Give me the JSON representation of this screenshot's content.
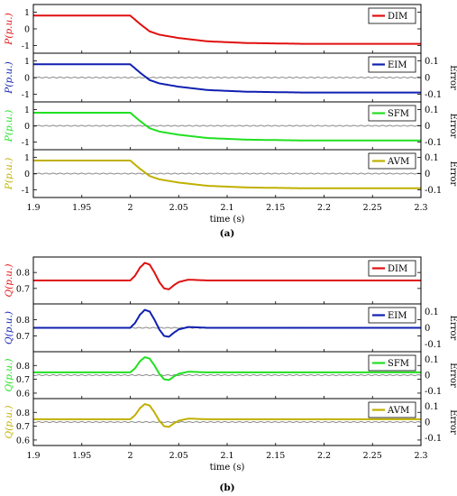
{
  "chart_data": [
    {
      "type": "line",
      "caption": "(a)",
      "xlabel": "time (s)",
      "xlim": [
        1.9,
        2.3
      ],
      "xticks": [
        1.9,
        1.95,
        2,
        2.05,
        2.1,
        2.15,
        2.2,
        2.25,
        2.3
      ],
      "xtick_labels": [
        "1.9",
        "1.95",
        "2",
        "2.05",
        "2.1",
        "2.15",
        "2.2",
        "2.25",
        "2.3"
      ],
      "error_label": "Error",
      "error_ticks": [
        "0.1",
        "0",
        "-0.1"
      ],
      "panels": [
        {
          "name": "DIM",
          "ylabel": "P(p.u.)",
          "color": "#e01010",
          "has_error": false,
          "ylim": [
            -1.3,
            1.3
          ],
          "yticks": [
            1,
            0,
            -1
          ],
          "ytick_labels": [
            "1",
            "0",
            "-1"
          ],
          "series": {
            "x": [
              1.9,
              2.0,
              2.01,
              2.02,
              2.03,
              2.05,
              2.08,
              2.12,
              2.18,
              2.3
            ],
            "y": [
              0.8,
              0.8,
              0.3,
              -0.15,
              -0.35,
              -0.55,
              -0.75,
              -0.85,
              -0.9,
              -0.9
            ]
          }
        },
        {
          "name": "EIM",
          "ylabel": "P(p.u.)",
          "color": "#1020b0",
          "has_error": true,
          "ylim": [
            -1.3,
            1.3
          ],
          "yticks": [
            1,
            0,
            -1
          ],
          "ytick_labels": [
            "1",
            "0",
            "-1"
          ],
          "series": {
            "x": [
              1.9,
              2.0,
              2.01,
              2.02,
              2.03,
              2.05,
              2.08,
              2.12,
              2.18,
              2.3
            ],
            "y": [
              0.8,
              0.8,
              0.3,
              -0.15,
              -0.35,
              -0.55,
              -0.75,
              -0.85,
              -0.9,
              -0.9
            ]
          }
        },
        {
          "name": "SFM",
          "ylabel": "P(p.u.)",
          "color": "#20e020",
          "has_error": true,
          "ylim": [
            -1.3,
            1.3
          ],
          "yticks": [
            1,
            0,
            -1
          ],
          "ytick_labels": [
            "1",
            "0",
            "-1"
          ],
          "series": {
            "x": [
              1.9,
              2.0,
              2.01,
              2.02,
              2.03,
              2.05,
              2.08,
              2.12,
              2.18,
              2.3
            ],
            "y": [
              0.8,
              0.8,
              0.3,
              -0.15,
              -0.35,
              -0.55,
              -0.75,
              -0.85,
              -0.9,
              -0.9
            ]
          }
        },
        {
          "name": "AVM",
          "ylabel": "P(p.u.)",
          "color": "#c0b000",
          "has_error": true,
          "ylim": [
            -1.3,
            1.3
          ],
          "yticks": [
            1,
            0,
            -1
          ],
          "ytick_labels": [
            "1",
            "0",
            "-1"
          ],
          "series": {
            "x": [
              1.9,
              2.0,
              2.01,
              2.02,
              2.03,
              2.05,
              2.08,
              2.12,
              2.18,
              2.3
            ],
            "y": [
              0.8,
              0.8,
              0.3,
              -0.15,
              -0.35,
              -0.55,
              -0.75,
              -0.85,
              -0.9,
              -0.9
            ]
          }
        }
      ]
    },
    {
      "type": "line",
      "caption": "(b)",
      "xlabel": "time (s)",
      "xlim": [
        1.9,
        2.3
      ],
      "xticks": [
        1.9,
        1.95,
        2,
        2.05,
        2.1,
        2.15,
        2.2,
        2.25,
        2.3
      ],
      "xtick_labels": [
        "1.9",
        "1.95",
        "2",
        "2.05",
        "2.1",
        "2.15",
        "2.2",
        "2.25",
        "2.3"
      ],
      "error_label": "Error",
      "error_ticks": [
        "0.1",
        "0",
        "-0.1"
      ],
      "panels": [
        {
          "name": "DIM",
          "ylabel": "Q(p.u.)",
          "color": "#e01010",
          "has_error": false,
          "ylim": [
            0.62,
            0.88
          ],
          "yticks": [
            0.8,
            0.7
          ],
          "ytick_labels": [
            "0.8",
            "0.7"
          ],
          "series": {
            "x": [
              1.9,
              2.0,
              2.005,
              2.01,
              2.015,
              2.02,
              2.025,
              2.03,
              2.035,
              2.04,
              2.045,
              2.05,
              2.06,
              2.08,
              2.3
            ],
            "y": [
              0.75,
              0.75,
              0.78,
              0.83,
              0.86,
              0.85,
              0.8,
              0.74,
              0.7,
              0.695,
              0.72,
              0.74,
              0.755,
              0.75,
              0.75
            ]
          }
        },
        {
          "name": "EIM",
          "ylabel": "Q(p.u.)",
          "color": "#1020b0",
          "has_error": true,
          "ylim": [
            0.62,
            0.88
          ],
          "yticks": [
            0.8,
            0.7
          ],
          "ytick_labels": [
            "0.8",
            "0.7"
          ],
          "series": {
            "x": [
              1.9,
              2.0,
              2.005,
              2.01,
              2.015,
              2.02,
              2.025,
              2.03,
              2.035,
              2.04,
              2.045,
              2.05,
              2.06,
              2.08,
              2.3
            ],
            "y": [
              0.75,
              0.75,
              0.78,
              0.83,
              0.86,
              0.85,
              0.8,
              0.74,
              0.7,
              0.695,
              0.72,
              0.74,
              0.755,
              0.75,
              0.75
            ]
          }
        },
        {
          "name": "SFM",
          "ylabel": "Q(p.u.)",
          "color": "#20e020",
          "has_error": true,
          "ylim": [
            0.58,
            0.88
          ],
          "yticks": [
            0.8,
            0.7,
            0.6
          ],
          "ytick_labels": [
            "0.8",
            "0.7",
            "0.6"
          ],
          "series": {
            "x": [
              1.9,
              2.0,
              2.005,
              2.01,
              2.015,
              2.02,
              2.025,
              2.03,
              2.035,
              2.04,
              2.045,
              2.05,
              2.06,
              2.08,
              2.3
            ],
            "y": [
              0.75,
              0.75,
              0.78,
              0.83,
              0.86,
              0.85,
              0.8,
              0.74,
              0.7,
              0.695,
              0.72,
              0.74,
              0.755,
              0.75,
              0.75
            ]
          }
        },
        {
          "name": "AVM",
          "ylabel": "Q(p.u.)",
          "color": "#c0b000",
          "has_error": true,
          "ylim": [
            0.58,
            0.88
          ],
          "yticks": [
            0.8,
            0.7,
            0.6
          ],
          "ytick_labels": [
            "0.8",
            "0.7",
            "0.6"
          ],
          "series": {
            "x": [
              1.9,
              2.0,
              2.005,
              2.01,
              2.015,
              2.02,
              2.025,
              2.03,
              2.035,
              2.04,
              2.045,
              2.05,
              2.06,
              2.08,
              2.3
            ],
            "y": [
              0.75,
              0.75,
              0.78,
              0.83,
              0.86,
              0.85,
              0.8,
              0.74,
              0.7,
              0.695,
              0.72,
              0.74,
              0.755,
              0.75,
              0.75
            ]
          }
        }
      ]
    }
  ]
}
